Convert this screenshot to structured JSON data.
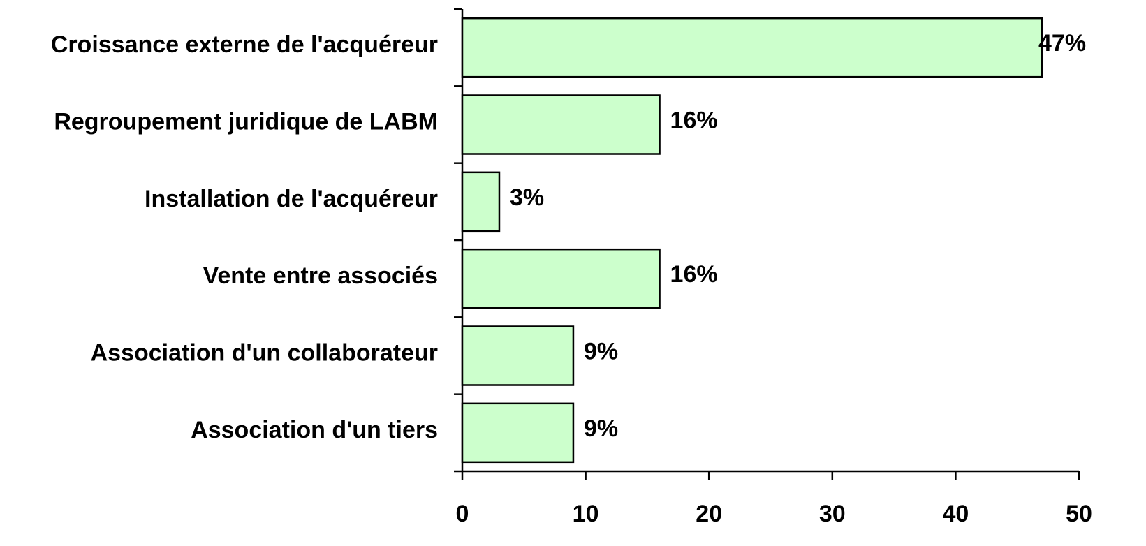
{
  "chart_data": {
    "type": "bar",
    "orientation": "horizontal",
    "categories": [
      "Croissance externe de l'acquéreur",
      "Regroupement juridique de LABM",
      "Installation de l'acquéreur",
      "Vente entre associés",
      "Association d'un collaborateur",
      "Association d'un tiers"
    ],
    "values": [
      47,
      16,
      3,
      16,
      9,
      9
    ],
    "value_labels": [
      "47%",
      "16%",
      "3%",
      "16%",
      "9%",
      "9%"
    ],
    "color": "#ccffcc",
    "xlim": [
      0,
      50
    ],
    "xticks": [
      0,
      10,
      20,
      30,
      40,
      50
    ]
  }
}
